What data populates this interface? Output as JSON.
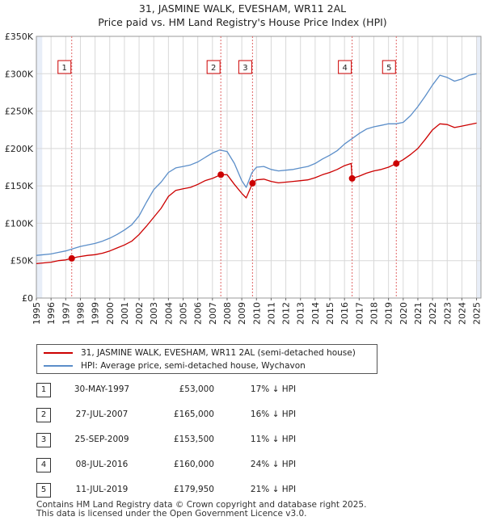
{
  "title": {
    "line1": "31, JASMINE WALK, EVESHAM, WR11 2AL",
    "line2": "Price paid vs. HM Land Registry's House Price Index (HPI)"
  },
  "legend": {
    "property": "31, JASMINE WALK, EVESHAM, WR11 2AL (semi-detached house)",
    "hpi": "HPI: Average price, semi-detached house, Wychavon"
  },
  "colors": {
    "property": "#cc0000",
    "hpi": "#5b8ec9",
    "shade": "#e8eef8",
    "vline": "#e06666"
  },
  "sales": [
    {
      "num": "1",
      "date": "30-MAY-1997",
      "price": "£53,000",
      "hpi_diff": "17% ↓ HPI"
    },
    {
      "num": "2",
      "date": "27-JUL-2007",
      "price": "£165,000",
      "hpi_diff": "16% ↓ HPI"
    },
    {
      "num": "3",
      "date": "25-SEP-2009",
      "price": "£153,500",
      "hpi_diff": "11% ↓ HPI"
    },
    {
      "num": "4",
      "date": "08-JUL-2016",
      "price": "£160,000",
      "hpi_diff": "24% ↓ HPI"
    },
    {
      "num": "5",
      "date": "11-JUL-2019",
      "price": "£179,950",
      "hpi_diff": "21% ↓ HPI"
    }
  ],
  "footer": {
    "line1": "Contains HM Land Registry data © Crown copyright and database right 2025.",
    "line2": "This data is licensed under the Open Government Licence v3.0."
  },
  "chart_data": {
    "type": "line",
    "title": "31, JASMINE WALK, EVESHAM, WR11 2AL — Price paid vs. HM Land Registry's House Price Index (HPI)",
    "xlabel": "",
    "ylabel": "",
    "xlim": [
      1995,
      2025.3
    ],
    "ylim": [
      0,
      350000
    ],
    "x_ticks": [
      1995,
      1996,
      1997,
      1998,
      1999,
      2000,
      2001,
      2002,
      2003,
      2004,
      2005,
      2006,
      2007,
      2008,
      2009,
      2010,
      2011,
      2012,
      2013,
      2014,
      2015,
      2016,
      2017,
      2018,
      2019,
      2020,
      2021,
      2022,
      2023,
      2024,
      2025
    ],
    "y_ticks": [
      {
        "value": 0,
        "label": "£0"
      },
      {
        "value": 50000,
        "label": "£50K"
      },
      {
        "value": 100000,
        "label": "£100K"
      },
      {
        "value": 150000,
        "label": "£150K"
      },
      {
        "value": 200000,
        "label": "£200K"
      },
      {
        "value": 250000,
        "label": "£250K"
      },
      {
        "value": 300000,
        "label": "£300K"
      },
      {
        "value": 350000,
        "label": "£350K"
      }
    ],
    "series": [
      {
        "name": "HPI: Average price, semi-detached house, Wychavon",
        "x": [
          1995,
          1995.5,
          1996,
          1996.5,
          1997,
          1997.5,
          1998,
          1998.5,
          1999,
          1999.5,
          2000,
          2000.5,
          2001,
          2001.5,
          2002,
          2002.5,
          2003,
          2003.5,
          2004,
          2004.5,
          2005,
          2005.5,
          2006,
          2006.5,
          2007,
          2007.5,
          2008,
          2008.5,
          2009,
          2009.3,
          2009.7,
          2010,
          2010.5,
          2011,
          2011.5,
          2012,
          2012.5,
          2013,
          2013.5,
          2014,
          2014.5,
          2015,
          2015.5,
          2016,
          2016.5,
          2017,
          2017.5,
          2018,
          2018.5,
          2019,
          2019.5,
          2020,
          2020.5,
          2021,
          2021.5,
          2022,
          2022.5,
          2023,
          2023.5,
          2024,
          2024.5,
          2025
        ],
        "values": [
          57000,
          58000,
          59000,
          61000,
          63000,
          66000,
          69000,
          71000,
          73000,
          76000,
          80000,
          85000,
          91000,
          98000,
          110000,
          128000,
          145000,
          155000,
          168000,
          174000,
          176000,
          178000,
          182000,
          188000,
          194000,
          198000,
          196000,
          180000,
          157000,
          148000,
          168000,
          175000,
          176000,
          172000,
          170000,
          171000,
          172000,
          174000,
          176000,
          180000,
          186000,
          191000,
          197000,
          206000,
          213000,
          220000,
          226000,
          229000,
          231000,
          233000,
          233000,
          235000,
          244000,
          256000,
          270000,
          285000,
          298000,
          295000,
          290000,
          293000,
          298000,
          300000
        ]
      },
      {
        "name": "31, JASMINE WALK, EVESHAM, WR11 2AL (semi-detached house)",
        "x": [
          1995,
          1995.5,
          1996,
          1996.5,
          1997,
          1997.41,
          1997.8,
          1998.5,
          1999,
          1999.5,
          2000,
          2000.5,
          2001,
          2001.5,
          2002,
          2002.5,
          2003,
          2003.5,
          2004,
          2004.5,
          2005,
          2005.5,
          2006,
          2006.5,
          2007,
          2007.57,
          2008,
          2008.5,
          2009,
          2009.3,
          2009.73,
          2010,
          2010.5,
          2011,
          2011.5,
          2012,
          2012.5,
          2013,
          2013.5,
          2014,
          2014.5,
          2015,
          2015.5,
          2016,
          2016.45,
          2016.52,
          2017,
          2017.5,
          2018,
          2018.5,
          2019,
          2019.53,
          2020,
          2020.5,
          2021,
          2021.5,
          2022,
          2022.5,
          2023,
          2023.5,
          2024,
          2024.5,
          2025
        ],
        "values": [
          46000,
          47000,
          48000,
          50000,
          51000,
          53000,
          55000,
          57000,
          58000,
          60000,
          63000,
          67000,
          71000,
          76000,
          85000,
          96000,
          108000,
          120000,
          136000,
          144000,
          146000,
          148000,
          152000,
          157000,
          160000,
          165000,
          165000,
          152000,
          140000,
          134000,
          153500,
          158000,
          159000,
          156000,
          154000,
          155000,
          156000,
          157000,
          158000,
          161000,
          165000,
          168000,
          172000,
          177000,
          180000,
          160000,
          163000,
          167000,
          170000,
          172000,
          175000,
          179950,
          185000,
          192000,
          200000,
          212000,
          225000,
          233000,
          232000,
          228000,
          230000,
          232000,
          234000
        ]
      }
    ],
    "sales": [
      {
        "label": "1",
        "x": 1997.41,
        "value": 53000
      },
      {
        "label": "2",
        "x": 2007.57,
        "value": 165000
      },
      {
        "label": "3",
        "x": 2009.73,
        "value": 153500
      },
      {
        "label": "4",
        "x": 2016.52,
        "value": 160000
      },
      {
        "label": "5",
        "x": 2019.53,
        "value": 179950
      }
    ],
    "shaded_ranges": [
      [
        1995,
        1995.4
      ],
      [
        2025.0,
        2025.3
      ]
    ]
  }
}
